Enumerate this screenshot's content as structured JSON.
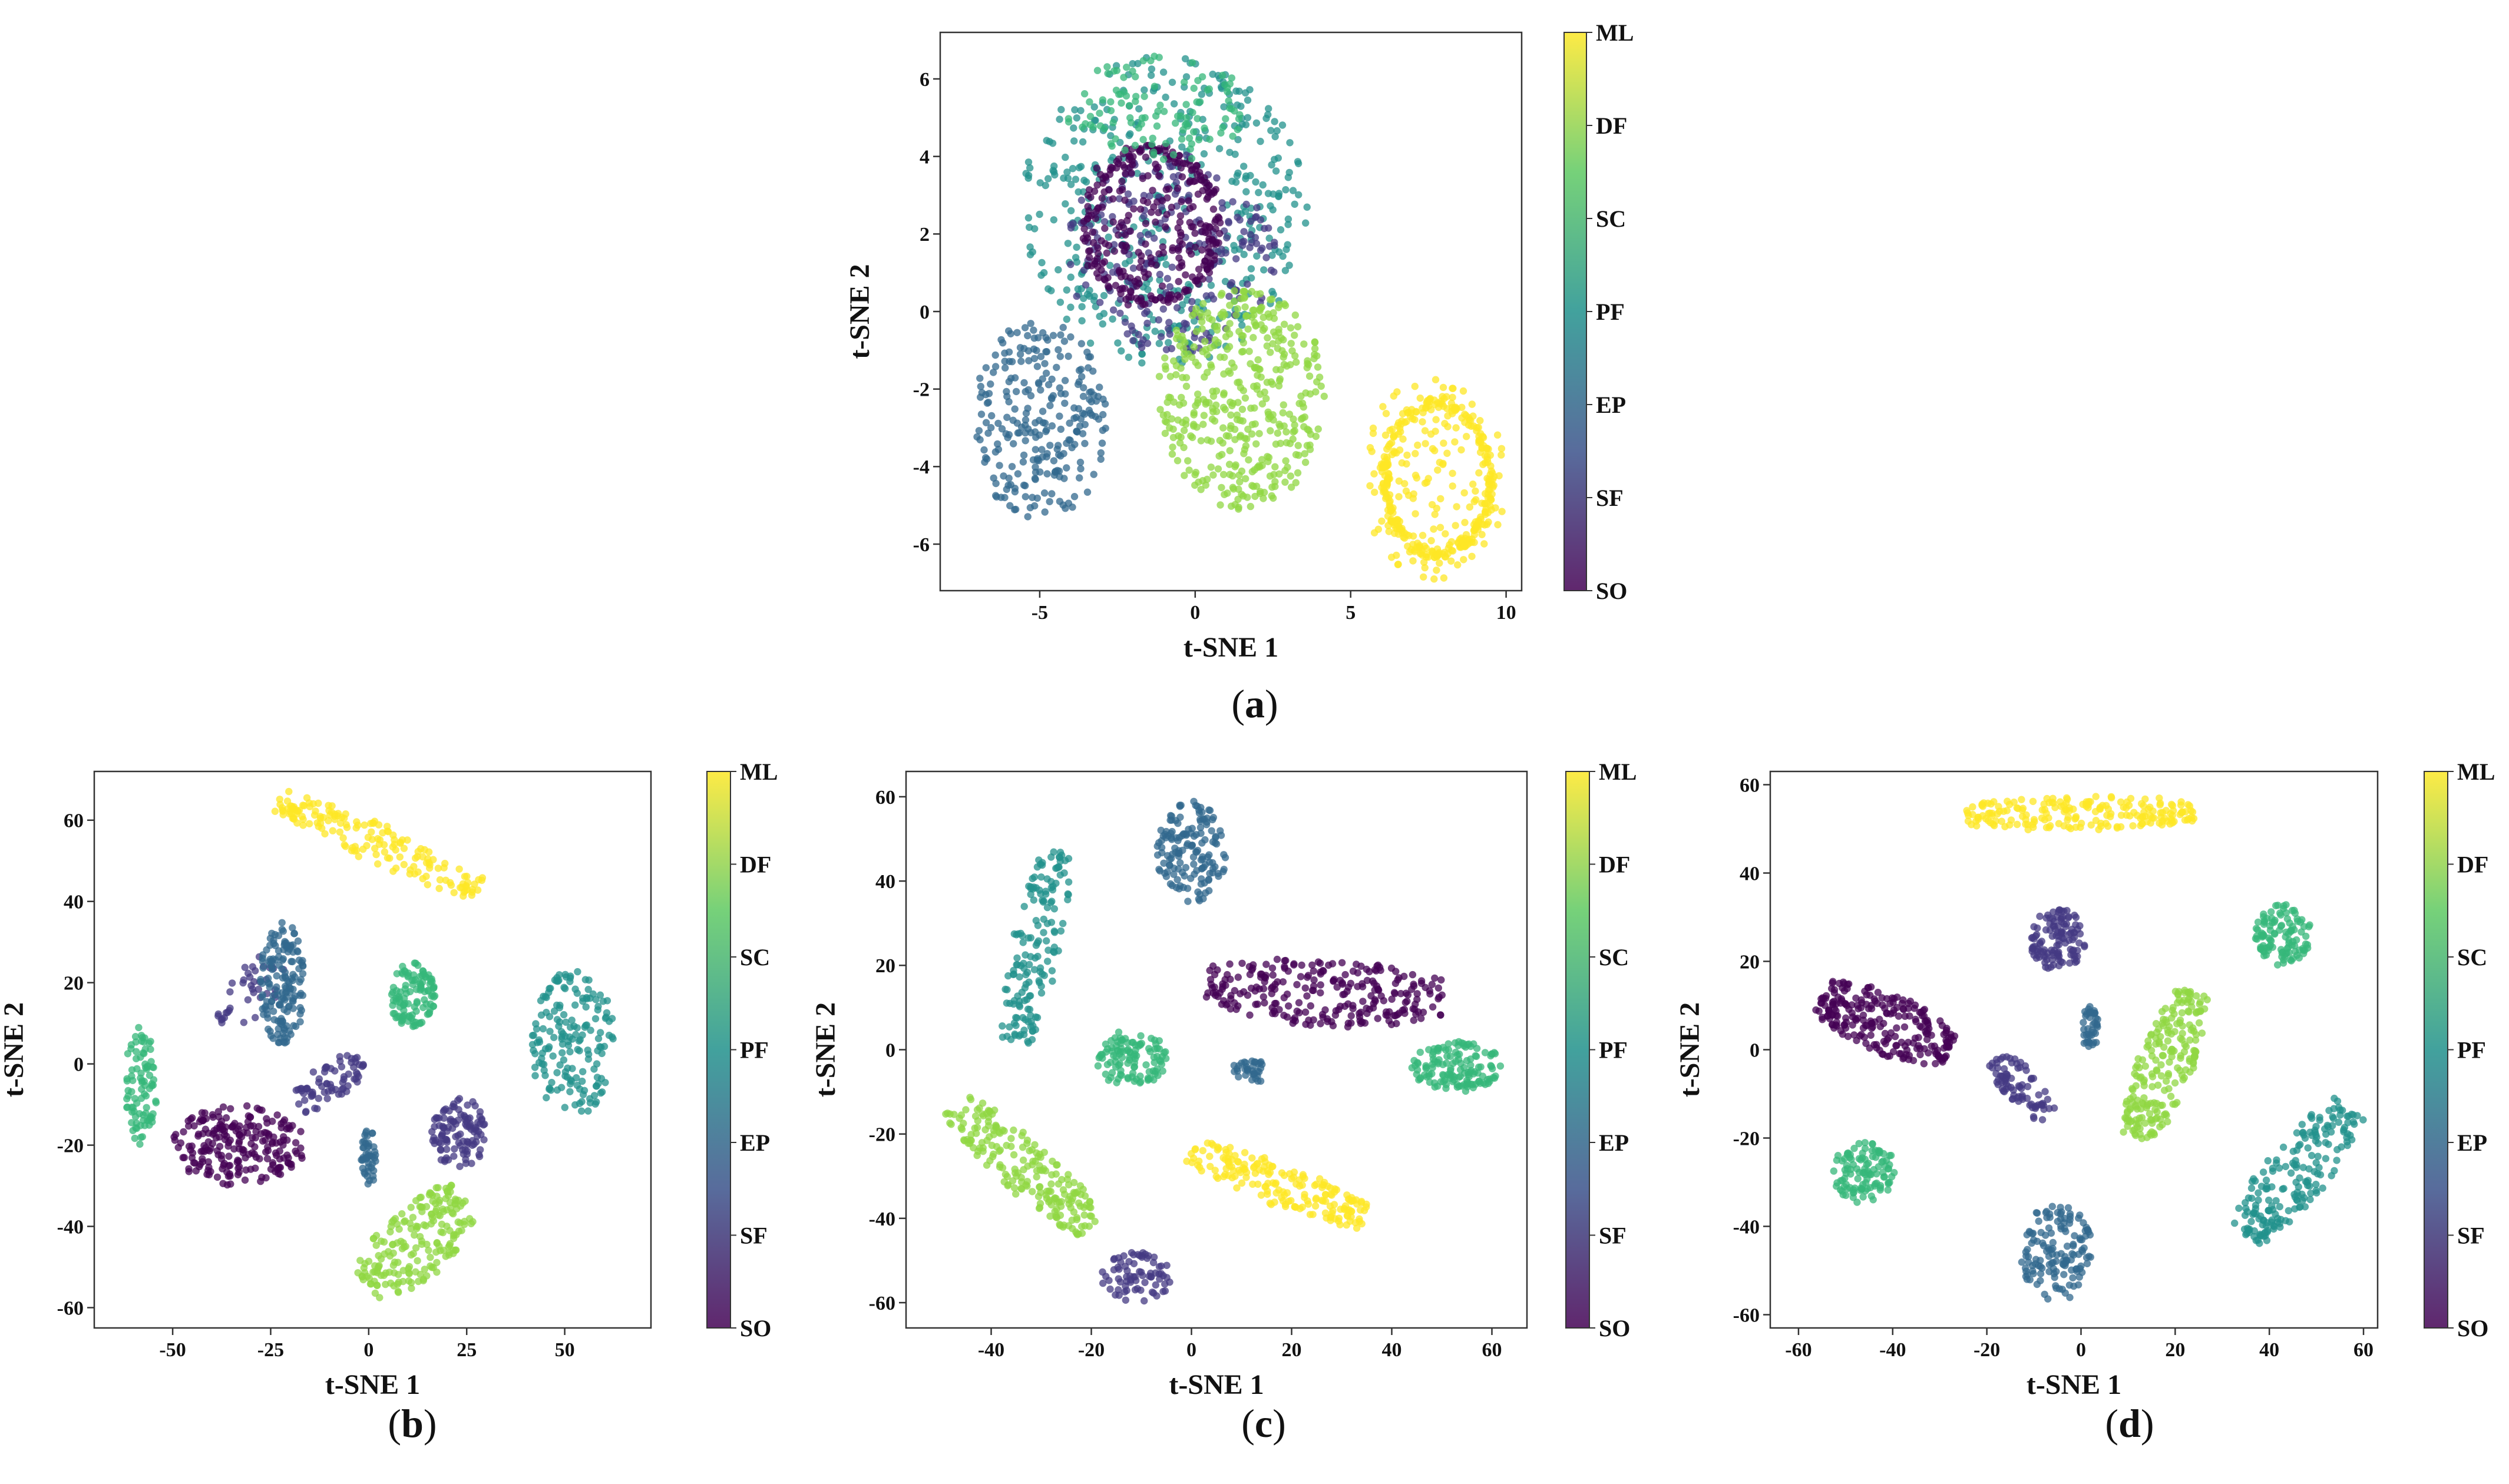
{
  "colormap": {
    "name": "viridis",
    "stops": [
      "#440154",
      "#3b528b",
      "#21918c",
      "#5ec962",
      "#fde725"
    ],
    "marker_alpha": 0.75
  },
  "class_labels": [
    "SO",
    "SF",
    "EP",
    "PF",
    "SC",
    "DF",
    "ML"
  ],
  "class_colors": [
    "#440154",
    "#443983",
    "#31688e",
    "#21918c",
    "#35b779",
    "#90d743",
    "#fde725"
  ],
  "chart_data": [
    {
      "id": "a",
      "type": "scatter",
      "caption_letter": "a",
      "xlabel": "t-SNE 1",
      "ylabel": "t-SNE 2",
      "xlim": [
        -8.2,
        10.5
      ],
      "ylim": [
        -7.2,
        7.2
      ],
      "xticks": [
        -5,
        0,
        5,
        10
      ],
      "yticks": [
        -6,
        -4,
        -2,
        0,
        2,
        4,
        6
      ],
      "colorbar": [
        "SO",
        "SF",
        "EP",
        "PF",
        "SC",
        "DF",
        "ML"
      ],
      "clusters": [
        {
          "class": "PF",
          "cx": -1.0,
          "cy": 2.6,
          "rx": 4.6,
          "ry": 4.0,
          "shape": "disk",
          "n": 420
        },
        {
          "class": "SF",
          "cx": -0.8,
          "cy": 1.5,
          "rx": 3.4,
          "ry": 2.6,
          "shape": "disk",
          "n": 220
        },
        {
          "class": "SO",
          "cx": -1.4,
          "cy": 2.2,
          "rx": 2.2,
          "ry": 2.1,
          "shape": "disk",
          "n": 170
        },
        {
          "class": "SO",
          "cx": -1.4,
          "cy": 2.2,
          "rx": 2.1,
          "ry": 1.95,
          "shape": "ring",
          "n": 160
        },
        {
          "class": "SC",
          "cx": -1.2,
          "cy": 5.2,
          "rx": 3.0,
          "ry": 1.4,
          "shape": "disk",
          "n": 110
        },
        {
          "class": "EP",
          "cx": -5.0,
          "cy": -2.8,
          "rx": 2.2,
          "ry": 2.6,
          "shape": "disk",
          "n": 260
        },
        {
          "class": "DF",
          "cx": 1.5,
          "cy": -2.2,
          "rx": 2.7,
          "ry": 2.9,
          "shape": "disk",
          "n": 420
        },
        {
          "class": "ML",
          "cx": 7.7,
          "cy": -4.3,
          "rx": 2.3,
          "ry": 2.7,
          "shape": "disk",
          "n": 150
        },
        {
          "class": "ML",
          "cx": 7.8,
          "cy": -4.3,
          "rx": 1.7,
          "ry": 1.95,
          "shape": "ring",
          "n": 280
        }
      ]
    },
    {
      "id": "b",
      "type": "scatter",
      "caption_letter": "b",
      "xlabel": "t-SNE 1",
      "ylabel": "t-SNE 2",
      "xlim": [
        -70,
        72
      ],
      "ylim": [
        -65,
        72
      ],
      "xticks": [
        -50,
        -25,
        0,
        25,
        50
      ],
      "yticks": [
        -60,
        -40,
        -20,
        0,
        20,
        40,
        60
      ],
      "colorbar": [
        "SO",
        "SF",
        "EP",
        "PF",
        "SC",
        "DF",
        "ML"
      ],
      "clusters": [
        {
          "class": "ML",
          "x1": -23,
          "y1": 65,
          "x2": 28,
          "y2": 43,
          "width": 5,
          "shape": "band",
          "n": 170
        },
        {
          "class": "SF",
          "x1": -38,
          "y1": 10,
          "x2": -23,
          "y2": 25,
          "width": 6,
          "shape": "band",
          "n": 40
        },
        {
          "class": "EP",
          "cx": -22,
          "cy": 20,
          "rx": 6,
          "ry": 15,
          "shape": "disk",
          "n": 160
        },
        {
          "class": "SC",
          "cx": 11,
          "cy": 17,
          "rx": 6,
          "ry": 8,
          "shape": "disk",
          "n": 110
        },
        {
          "class": "PF",
          "cx": 52,
          "cy": 5,
          "rx": 11,
          "ry": 18,
          "shape": "disk",
          "n": 170
        },
        {
          "class": "SC",
          "cx": -58,
          "cy": -5,
          "rx": 4,
          "ry": 15,
          "shape": "disk",
          "n": 90
        },
        {
          "class": "SO",
          "cx": -33,
          "cy": -20,
          "rx": 17,
          "ry": 10,
          "shape": "disk",
          "n": 220
        },
        {
          "class": "SF",
          "x1": -18,
          "y1": -10,
          "x2": -2,
          "y2": 1,
          "width": 5,
          "shape": "band",
          "n": 70
        },
        {
          "class": "EP",
          "cx": 0,
          "cy": -23,
          "rx": 2,
          "ry": 7,
          "shape": "disk",
          "n": 45
        },
        {
          "class": "SF",
          "cx": 23,
          "cy": -17,
          "rx": 7,
          "ry": 9,
          "shape": "disk",
          "n": 110
        },
        {
          "class": "DF",
          "x1": 0,
          "y1": -55,
          "x2": 24,
          "y2": -33,
          "width": 9,
          "shape": "band",
          "n": 200
        }
      ]
    },
    {
      "id": "c",
      "type": "scatter",
      "caption_letter": "c",
      "xlabel": "t-SNE 1",
      "ylabel": "t-SNE 2",
      "xlim": [
        -57,
        67
      ],
      "ylim": [
        -66,
        66
      ],
      "xticks": [
        -40,
        -20,
        0,
        20,
        40,
        60
      ],
      "yticks": [
        -60,
        -40,
        -20,
        0,
        20,
        40,
        60
      ],
      "colorbar": [
        "SO",
        "SF",
        "EP",
        "PF",
        "SC",
        "DF",
        "ML"
      ],
      "clusters": [
        {
          "class": "EP",
          "cx": 0,
          "cy": 47,
          "rx": 7,
          "ry": 12,
          "shape": "disk",
          "n": 150
        },
        {
          "class": "PF",
          "x1": -27,
          "y1": 47,
          "x2": -35,
          "y2": 2,
          "width": 5,
          "shape": "band",
          "n": 160
        },
        {
          "class": "SO",
          "x1": 3,
          "y1": 15,
          "x2": 50,
          "y2": 12,
          "width": 8,
          "shape": "band",
          "n": 260
        },
        {
          "class": "SC",
          "cx": 53,
          "cy": -4,
          "rx": 9,
          "ry": 6,
          "shape": "disk",
          "n": 140
        },
        {
          "class": "SC",
          "cx": -12,
          "cy": -2,
          "rx": 7,
          "ry": 7,
          "shape": "disk",
          "n": 110
        },
        {
          "class": "EP",
          "cx": 12,
          "cy": -5,
          "rx": 4,
          "ry": 3,
          "shape": "disk",
          "n": 35
        },
        {
          "class": "DF",
          "x1": -47,
          "y1": -13,
          "x2": -20,
          "y2": -42,
          "width": 6,
          "shape": "band",
          "n": 210
        },
        {
          "class": "SF",
          "cx": -11,
          "cy": -54,
          "rx": 7,
          "ry": 6,
          "shape": "disk",
          "n": 75
        },
        {
          "class": "ML",
          "x1": 0,
          "y1": -24,
          "x2": 35,
          "y2": -40,
          "width": 5,
          "shape": "band",
          "n": 190
        }
      ]
    },
    {
      "id": "d",
      "type": "scatter",
      "caption_letter": "d",
      "xlabel": "t-SNE 1",
      "ylabel": "t-SNE 2",
      "xlim": [
        -66,
        63
      ],
      "ylim": [
        -63,
        63
      ],
      "xticks": [
        -60,
        -40,
        -20,
        0,
        20,
        40,
        60
      ],
      "yticks": [
        -60,
        -40,
        -20,
        0,
        20,
        40,
        60
      ],
      "colorbar": [
        "SO",
        "SF",
        "EP",
        "PF",
        "SC",
        "DF",
        "ML"
      ],
      "clusters": [
        {
          "class": "ML",
          "x1": -25,
          "y1": 53,
          "x2": 24,
          "y2": 54,
          "width": 4,
          "shape": "band",
          "n": 200
        },
        {
          "class": "SF",
          "cx": -5,
          "cy": 25,
          "rx": 6,
          "ry": 7,
          "shape": "disk",
          "n": 120
        },
        {
          "class": "SC",
          "cx": 43,
          "cy": 26,
          "rx": 6,
          "ry": 7,
          "shape": "disk",
          "n": 110
        },
        {
          "class": "SO",
          "x1": -55,
          "y1": 12,
          "x2": -28,
          "y2": 0,
          "width": 7,
          "shape": "band",
          "n": 240
        },
        {
          "class": "SF",
          "x1": -18,
          "y1": -2,
          "x2": -7,
          "y2": -15,
          "width": 4,
          "shape": "band",
          "n": 80
        },
        {
          "class": "EP",
          "cx": 2,
          "cy": 5,
          "rx": 2,
          "ry": 5,
          "shape": "disk",
          "n": 40
        },
        {
          "class": "DF",
          "x1": 12,
          "y1": -20,
          "x2": 24,
          "y2": 13,
          "width": 6,
          "shape": "band",
          "n": 220
        },
        {
          "class": "PF",
          "x1": 35,
          "y1": -42,
          "x2": 57,
          "y2": -13,
          "width": 7,
          "shape": "band",
          "n": 200
        },
        {
          "class": "SC",
          "cx": -46,
          "cy": -28,
          "rx": 7,
          "ry": 7,
          "shape": "disk",
          "n": 110
        },
        {
          "class": "EP",
          "cx": -5,
          "cy": -46,
          "rx": 8,
          "ry": 11,
          "shape": "disk",
          "n": 140
        }
      ]
    }
  ]
}
